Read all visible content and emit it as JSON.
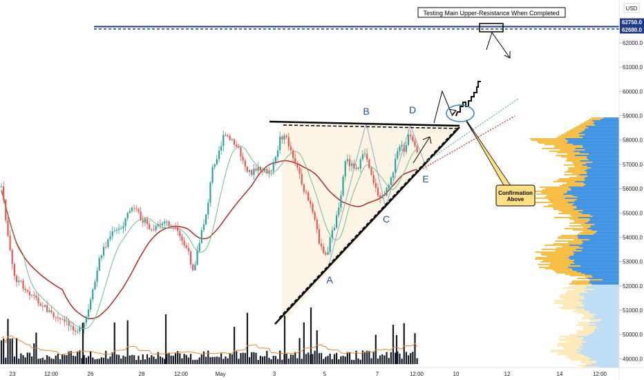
{
  "currency": "USD",
  "chart_data": {
    "type": "candlestick",
    "y_axis": {
      "ticks": [
        {
          "label": "62000.0",
          "value": 62000
        },
        {
          "label": "61000.0",
          "value": 61000
        },
        {
          "label": "60000.0",
          "value": 60000
        },
        {
          "label": "59000.0",
          "value": 59000
        },
        {
          "label": "58000.0",
          "value": 58000
        },
        {
          "label": "57000.0",
          "value": 57000
        },
        {
          "label": "56000.0",
          "value": 56000
        },
        {
          "label": "55000.0",
          "value": 55000
        },
        {
          "label": "54000.0",
          "value": 54000
        },
        {
          "label": "53000.0",
          "value": 53000
        },
        {
          "label": "52000.0",
          "value": 52000
        },
        {
          "label": "51000.0",
          "value": 51000
        },
        {
          "label": "50000.0",
          "value": 50000
        },
        {
          "label": "49000.0",
          "value": 49000
        }
      ],
      "range": [
        48900,
        63850
      ],
      "price_badges": [
        {
          "label": "62750.0",
          "value": 62750,
          "color": "#1e3a8a"
        },
        {
          "label": "62680.0",
          "value": 62680,
          "color": "#1e3a8a"
        }
      ]
    },
    "x_axis": {
      "range_days": [
        0,
        18.1
      ],
      "ticks": [
        {
          "label": "23",
          "t": 0
        },
        {
          "label": "12:00",
          "t": 0.5
        },
        {
          "label": "26",
          "t": 3.0
        },
        {
          "label": "28",
          "t": 4.0
        },
        {
          "label": "12:00",
          "t": 4.5
        },
        {
          "label": "May",
          "t": 5.3
        },
        {
          "label": "3",
          "t": 7.5
        },
        {
          "label": "5",
          "t": 8.5
        },
        {
          "label": "7",
          "t": 9.5
        },
        {
          "label": "12:00",
          "t": 10.0
        },
        {
          "label": "10",
          "t": 10.8
        },
        {
          "label": "12",
          "t": 11.8
        },
        {
          "label": "14",
          "t": 12.8
        },
        {
          "label": "12:00",
          "t": 13.3
        }
      ]
    },
    "resistance_levels": [
      62750,
      62680
    ],
    "annotations": {
      "resistance_note": "Testing Main Upper-Resistance When Completed",
      "confirmation_note": [
        "Confirmation",
        "Above"
      ],
      "wave_labels": [
        {
          "label": "A",
          "t": 8.5,
          "price": 52300
        },
        {
          "label": "B",
          "t": 9.0,
          "price": 59450
        },
        {
          "label": "C",
          "t": 9.5,
          "price": 54650
        },
        {
          "label": "D",
          "t": 9.85,
          "price": 59500
        },
        {
          "label": "E",
          "t": 10.05,
          "price": 56500
        }
      ]
    }
  }
}
